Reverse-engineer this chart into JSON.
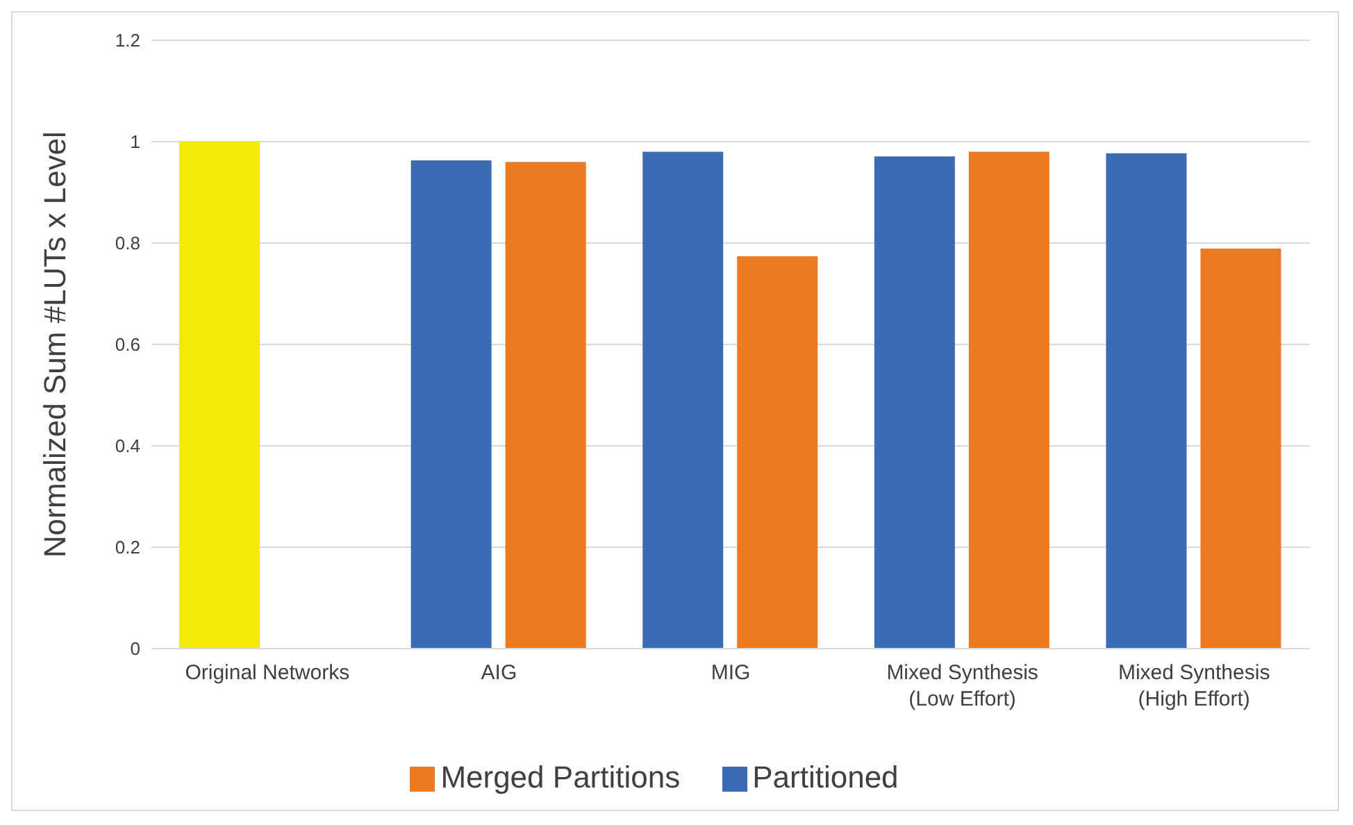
{
  "chart_data": {
    "type": "bar",
    "ylabel": "Normalized Sum #LUTs x Level",
    "categories": [
      "Original Networks",
      "AIG",
      "MIG",
      "Mixed Synthesis (Low Effort)",
      "Mixed Synthesis (High Effort)"
    ],
    "series": [
      {
        "name": "Partitioned",
        "color": "#3a6bb3",
        "colors": [
          "#f5e90a",
          "#3a6bb3",
          "#3a6bb3",
          "#3a6bb3",
          "#3a6bb3"
        ],
        "values": [
          1.0,
          0.963,
          0.98,
          0.971,
          0.977
        ]
      },
      {
        "name": "Merged Partitions",
        "color": "#ec7a23",
        "values": [
          null,
          0.96,
          0.774,
          0.98,
          0.789
        ]
      }
    ],
    "ylim": [
      0,
      1.2
    ],
    "yticks": [
      0,
      0.2,
      0.4,
      0.6,
      0.8,
      1,
      1.2
    ],
    "grid": "y",
    "legend": "bottom"
  }
}
